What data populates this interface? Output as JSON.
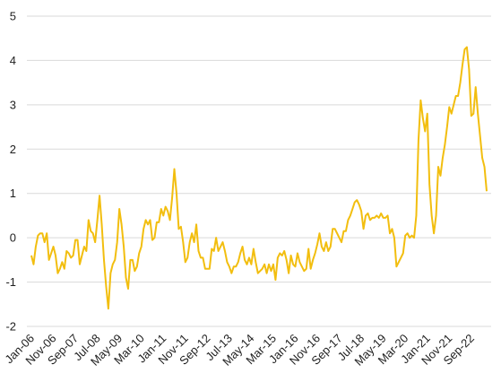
{
  "chart_data": {
    "type": "line",
    "title": "",
    "xlabel": "",
    "ylabel": "",
    "ylim": [
      -2,
      5
    ],
    "yticks": [
      "-2",
      "-1",
      "0",
      "1",
      "2",
      "3",
      "4",
      "5"
    ],
    "grid": "horizontal",
    "legend": "none",
    "line_color": "#F2BE0F",
    "xtick_labels": [
      "Jan-06",
      "Nov-06",
      "Sep-07",
      "Jul-08",
      "May-09",
      "Mar-10",
      "Jan-11",
      "Nov-11",
      "Sep-12",
      "Jul-13",
      "May-14",
      "Mar-15",
      "Jan-16",
      "Nov-16",
      "Sep-17",
      "Jul-18",
      "May-19",
      "Mar-20",
      "Jan-21",
      "Nov-21",
      "Sep-22"
    ],
    "x_start": "Jan-06",
    "x_end": "Sep-22",
    "series": [
      {
        "values": [
          -0.4,
          -0.6,
          -0.2,
          0.05,
          0.1,
          0.1,
          -0.1,
          0.1,
          -0.5,
          -0.35,
          -0.2,
          -0.4,
          -0.8,
          -0.7,
          -0.55,
          -0.7,
          -0.3,
          -0.35,
          -0.45,
          -0.4,
          -0.05,
          -0.05,
          -0.6,
          -0.4,
          -0.2,
          -0.3,
          0.4,
          0.15,
          0.1,
          -0.1,
          0.4,
          0.95,
          0.3,
          -0.5,
          -1.1,
          -1.6,
          -0.8,
          -0.6,
          -0.5,
          -0.1,
          0.65,
          0.3,
          -0.2,
          -0.9,
          -1.15,
          -0.5,
          -0.5,
          -0.75,
          -0.65,
          -0.35,
          -0.2,
          0.2,
          0.4,
          0.3,
          0.4,
          -0.05,
          0.0,
          0.35,
          0.35,
          0.65,
          0.5,
          0.7,
          0.6,
          0.4,
          0.9,
          1.55,
          1.0,
          0.2,
          0.25,
          -0.1,
          -0.55,
          -0.45,
          -0.1,
          0.1,
          -0.1,
          0.3,
          -0.3,
          -0.45,
          -0.45,
          -0.7,
          -0.7,
          -0.7,
          -0.25,
          -0.3,
          0.0,
          -0.3,
          -0.2,
          -0.1,
          -0.3,
          -0.55,
          -0.65,
          -0.8,
          -0.65,
          -0.65,
          -0.55,
          -0.35,
          -0.2,
          -0.5,
          -0.6,
          -0.45,
          -0.6,
          -0.25,
          -0.55,
          -0.8,
          -0.75,
          -0.7,
          -0.6,
          -0.8,
          -0.6,
          -0.75,
          -0.6,
          -0.95,
          -0.45,
          -0.35,
          -0.4,
          -0.3,
          -0.5,
          -0.8,
          -0.4,
          -0.6,
          -0.65,
          -0.35,
          -0.55,
          -0.65,
          -0.75,
          -0.7,
          -0.25,
          -0.7,
          -0.5,
          -0.35,
          -0.15,
          0.1,
          -0.2,
          -0.3,
          -0.1,
          -0.3,
          -0.2,
          0.2,
          0.2,
          0.1,
          0.0,
          -0.1,
          0.15,
          0.15,
          0.4,
          0.5,
          0.65,
          0.8,
          0.85,
          0.75,
          0.6,
          0.2,
          0.5,
          0.55,
          0.4,
          0.45,
          0.45,
          0.5,
          0.45,
          0.55,
          0.45,
          0.45,
          0.5,
          0.1,
          0.2,
          0.0,
          -0.65,
          -0.55,
          -0.45,
          -0.35,
          0.05,
          0.1,
          0.0,
          0.05,
          0.0,
          0.5,
          2.2,
          3.1,
          2.7,
          2.4,
          2.8,
          1.2,
          0.5,
          0.1,
          0.5,
          1.6,
          1.4,
          1.8,
          2.1,
          2.5,
          2.95,
          2.8,
          3.0,
          3.2,
          3.2,
          3.5,
          3.9,
          4.25,
          4.3,
          3.8,
          2.75,
          2.8,
          3.4,
          2.8,
          2.3,
          1.8,
          1.6,
          1.05
        ]
      }
    ]
  }
}
